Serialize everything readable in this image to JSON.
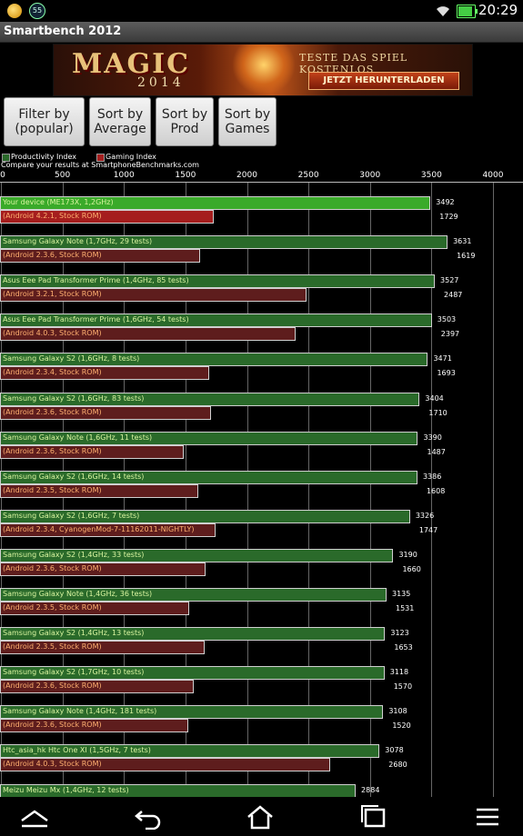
{
  "status_bar": {
    "notification_badge": "55",
    "time": "20:29"
  },
  "app": {
    "title": "Smartbench 2012"
  },
  "banner": {
    "title": "MAGIC",
    "year": "2014",
    "tagline": "TESTE DAS SPIEL KOSTENLOS",
    "cta": "JETZT HERUNTERLADEN"
  },
  "buttons": [
    {
      "label": "Filter by\n(popular)"
    },
    {
      "label": "Sort by\nAverage"
    },
    {
      "label": "Sort by\nProd"
    },
    {
      "label": "Sort by\nGames"
    }
  ],
  "legend": {
    "productivity": "Productivity Index",
    "gaming": "Gaming Index",
    "compare_note": "Compare your results at SmartphoneBenchmarks.com"
  },
  "colors": {
    "productivity": "#2a6a2a",
    "productivity_highlight": "#3aaa2a",
    "gaming": "#5e1d1d",
    "gaming_highlight": "#a51e1e"
  },
  "chart_data": {
    "type": "bar",
    "orientation": "horizontal",
    "xlim": [
      0,
      4000
    ],
    "ticks": [
      "0",
      "500",
      "1000",
      "1500",
      "2000",
      "2500",
      "3000",
      "3500",
      "4000"
    ],
    "series_names": [
      "Productivity Index",
      "Gaming Index"
    ],
    "rows": [
      {
        "device": "Your device (ME173X, 1,2GHz)",
        "rom": "(Android 4.2.1, Stock ROM)",
        "productivity": 3492,
        "gaming": 1729,
        "highlight": true
      },
      {
        "device": "Samsung Galaxy Note (1,7GHz, 29 tests)",
        "rom": "(Android 2.3.6, Stock ROM)",
        "productivity": 3631,
        "gaming": 1619
      },
      {
        "device": "Asus Eee Pad Transformer Prime (1,4GHz, 85 tests)",
        "rom": "(Android 3.2.1, Stock ROM)",
        "productivity": 3527,
        "gaming": 2487
      },
      {
        "device": "Asus Eee Pad Transformer Prime (1,6GHz, 54 tests)",
        "rom": "(Android 4.0.3, Stock ROM)",
        "productivity": 3503,
        "gaming": 2397
      },
      {
        "device": "Samsung Galaxy S2 (1,6GHz, 8 tests)",
        "rom": "(Android 2.3.4, Stock ROM)",
        "productivity": 3471,
        "gaming": 1693
      },
      {
        "device": "Samsung Galaxy S2 (1,6GHz, 83 tests)",
        "rom": "(Android 2.3.6, Stock ROM)",
        "productivity": 3404,
        "gaming": 1710
      },
      {
        "device": "Samsung Galaxy Note (1,6GHz, 11 tests)",
        "rom": "(Android 2.3.6, Stock ROM)",
        "productivity": 3390,
        "gaming": 1487
      },
      {
        "device": "Samsung Galaxy S2 (1,6GHz, 14 tests)",
        "rom": "(Android 2.3.5, Stock ROM)",
        "productivity": 3386,
        "gaming": 1608
      },
      {
        "device": "Samsung Galaxy S2 (1,6GHz, 7 tests)",
        "rom": "(Android 2.3.4, CyanogenMod-7-11162011-NIGHTLY)",
        "productivity": 3326,
        "gaming": 1747
      },
      {
        "device": "Samsung Galaxy S2 (1,4GHz, 33 tests)",
        "rom": "(Android 2.3.6, Stock ROM)",
        "productivity": 3190,
        "gaming": 1660
      },
      {
        "device": "Samsung Galaxy Note (1,4GHz, 36 tests)",
        "rom": "(Android 2.3.5, Stock ROM)",
        "productivity": 3135,
        "gaming": 1531
      },
      {
        "device": "Samsung Galaxy S2 (1,4GHz, 13 tests)",
        "rom": "(Android 2.3.5, Stock ROM)",
        "productivity": 3123,
        "gaming": 1653
      },
      {
        "device": "Samsung Galaxy S2 (1,7GHz, 10 tests)",
        "rom": "(Android 2.3.6, Stock ROM)",
        "productivity": 3118,
        "gaming": 1570
      },
      {
        "device": "Samsung Galaxy Note (1,4GHz, 181 tests)",
        "rom": "(Android 2.3.6, Stock ROM)",
        "productivity": 3108,
        "gaming": 1520
      },
      {
        "device": "Htc_asia_hk Htc One XI (1,5GHz, 7 tests)",
        "rom": "(Android 4.0.3, Stock ROM)",
        "productivity": 3078,
        "gaming": 2680
      },
      {
        "device": "Meizu Meizu Mx (1,4GHz, 12 tests)",
        "rom": "",
        "productivity": 2884,
        "gaming": null
      }
    ]
  }
}
